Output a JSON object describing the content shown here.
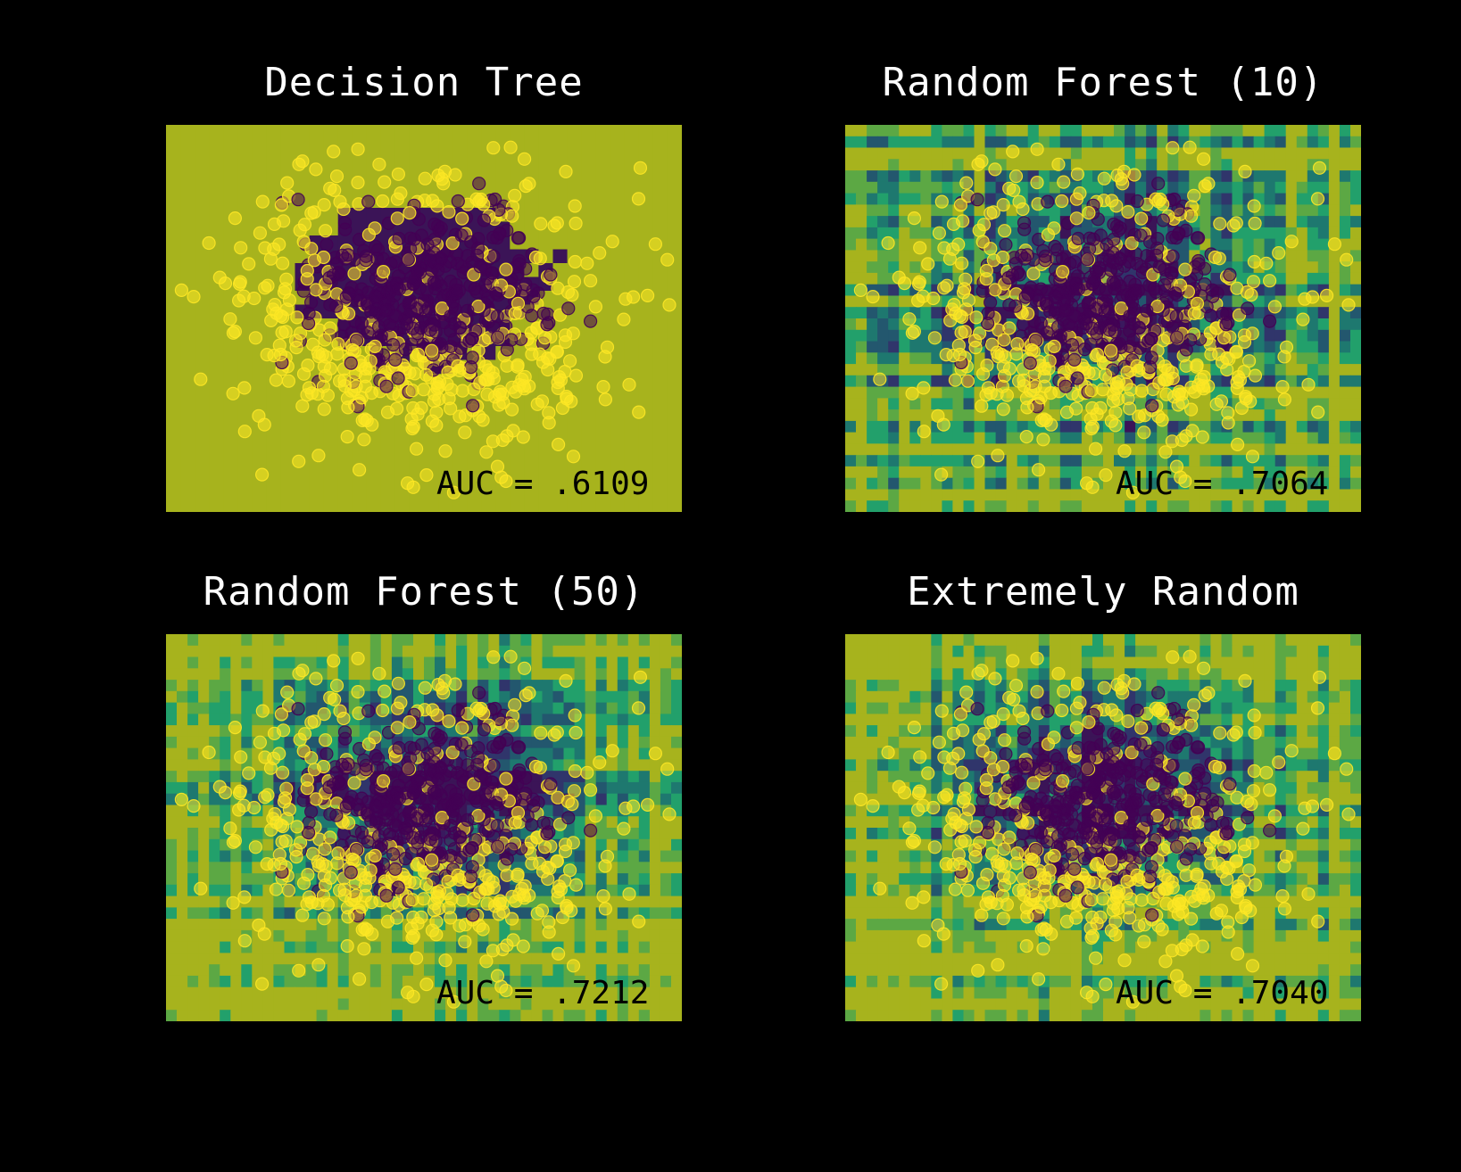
{
  "colors": {
    "background": "#000000",
    "class_0": "#440154",
    "class_1": "#fde725",
    "colormap": [
      "#3b1457",
      "#30356b",
      "#23576e",
      "#1e786f",
      "#22a06b",
      "#5ca844",
      "#a7b31d"
    ]
  },
  "chart_data": [
    {
      "type": "heatmap",
      "title": "Decision Tree",
      "annotation": "AUC = .6109",
      "auc": 0.6109,
      "grid": false,
      "axes_visible": false,
      "overlay": "scatter",
      "classes": [
        "class 0 (purple)",
        "class 1 (yellow)"
      ]
    },
    {
      "type": "heatmap",
      "title": "Random Forest (10)",
      "annotation": "AUC = .7064",
      "auc": 0.7064,
      "grid": false,
      "axes_visible": false,
      "overlay": "scatter",
      "classes": [
        "class 0 (purple)",
        "class 1 (yellow)"
      ]
    },
    {
      "type": "heatmap",
      "title": "Random Forest (50)",
      "annotation": "AUC = .7212",
      "auc": 0.7212,
      "grid": false,
      "axes_visible": false,
      "overlay": "scatter",
      "classes": [
        "class 0 (purple)",
        "class 1 (yellow)"
      ]
    },
    {
      "type": "heatmap",
      "title": "Extremely Random",
      "annotation": "AUC = .7040",
      "auc": 0.704,
      "grid": false,
      "axes_visible": false,
      "overlay": "scatter",
      "classes": [
        "class 0 (purple)",
        "class 1 (yellow)"
      ]
    }
  ]
}
